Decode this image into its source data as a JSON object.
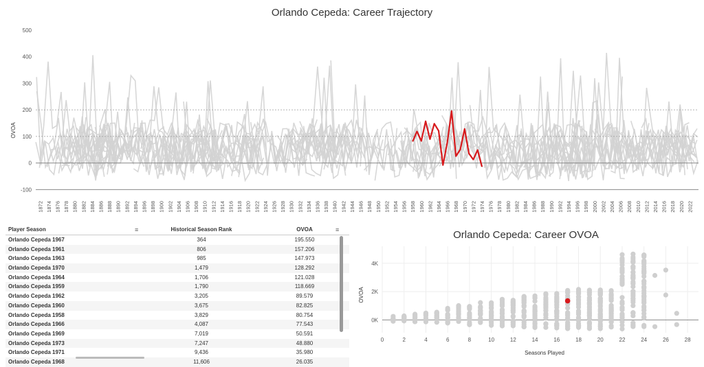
{
  "top_chart": {
    "title": "Orlando Cepeda: Career Trajectory",
    "ylabel": "OVOA",
    "yticks": [
      "500",
      "400",
      "300",
      "200",
      "100",
      "0",
      "-100"
    ],
    "xticks": [
      "1872",
      "1874",
      "1876",
      "1878",
      "1880",
      "1882",
      "1884",
      "1886",
      "1888",
      "1890",
      "1892",
      "1894",
      "1896",
      "1898",
      "1900",
      "1902",
      "1904",
      "1906",
      "1908",
      "1910",
      "1912",
      "1914",
      "1916",
      "1918",
      "1920",
      "1922",
      "1924",
      "1926",
      "1928",
      "1930",
      "1932",
      "1934",
      "1936",
      "1938",
      "1940",
      "1942",
      "1944",
      "1946",
      "1948",
      "1950",
      "1952",
      "1954",
      "1956",
      "1958",
      "1960",
      "1962",
      "1964",
      "1966",
      "1968",
      "1970",
      "1972",
      "1974",
      "1976",
      "1978",
      "1980",
      "1982",
      "1984",
      "1986",
      "1988",
      "1990",
      "1992",
      "1994",
      "1996",
      "1998",
      "2000",
      "2002",
      "2004",
      "2006",
      "2008",
      "2010",
      "2012",
      "2014",
      "2016",
      "2018",
      "2020",
      "2022"
    ],
    "highlight_color": "#d7191c",
    "background_color": "#d3d3d3"
  },
  "chart_data": [
    {
      "type": "line",
      "title": "Orlando Cepeda: Career Trajectory",
      "xlabel": "",
      "ylabel": "OVOA",
      "xlim": [
        1871,
        2024
      ],
      "ylim": [
        -130,
        510
      ],
      "series": [
        {
          "name": "Orlando Cepeda",
          "x": [
            1958,
            1959,
            1960,
            1961,
            1962,
            1963,
            1964,
            1965,
            1966,
            1967,
            1968,
            1969,
            1970,
            1971,
            1972,
            1973,
            1974
          ],
          "values": [
            80.754,
            118.669,
            82.825,
            157.206,
            89.579,
            147.973,
            121.028,
            -8,
            77.543,
            195.55,
            26,
            50.591,
            128.292,
            35.98,
            13,
            48.88,
            -14
          ]
        }
      ]
    },
    {
      "type": "scatter",
      "title": "Orlando Cepeda: Career OVOA",
      "xlabel": "Seasons Played",
      "ylabel": "OVOA",
      "xlim": [
        0,
        29
      ],
      "ylim": [
        -900,
        5200
      ],
      "xticks": [
        "0",
        "2",
        "4",
        "6",
        "8",
        "10",
        "12",
        "14",
        "16",
        "18",
        "20",
        "22",
        "24",
        "26",
        "28"
      ],
      "yticks": [
        "4K",
        "2K",
        "0K"
      ],
      "series": [
        {
          "name": "Orlando Cepeda",
          "x": [
            17
          ],
          "values": [
            1350
          ]
        }
      ]
    }
  ],
  "table": {
    "headers": [
      "Player Season",
      "Historical Season Rank",
      "OVOA"
    ],
    "rows": [
      [
        "Orlando Cepeda 1967",
        "364",
        "195.550"
      ],
      [
        "Orlando Cepeda 1961",
        "806",
        "157.206"
      ],
      [
        "Orlando Cepeda 1963",
        "985",
        "147.973"
      ],
      [
        "Orlando Cepeda 1970",
        "1,479",
        "128.292"
      ],
      [
        "Orlando Cepeda 1964",
        "1,706",
        "121.028"
      ],
      [
        "Orlando Cepeda 1959",
        "1,790",
        "118.669"
      ],
      [
        "Orlando Cepeda 1962",
        "3,205",
        "89.579"
      ],
      [
        "Orlando Cepeda 1960",
        "3,675",
        "82.825"
      ],
      [
        "Orlando Cepeda 1958",
        "3,829",
        "80.754"
      ],
      [
        "Orlando Cepeda 1966",
        "4,087",
        "77.543"
      ],
      [
        "Orlando Cepeda 1969",
        "7,019",
        "50.591"
      ],
      [
        "Orlando Cepeda 1973",
        "7,247",
        "48.880"
      ],
      [
        "Orlando Cepeda 1971",
        "9,436",
        "35.980"
      ],
      [
        "Orlando Cepeda 1968",
        "11,606",
        "26.035"
      ]
    ]
  }
}
